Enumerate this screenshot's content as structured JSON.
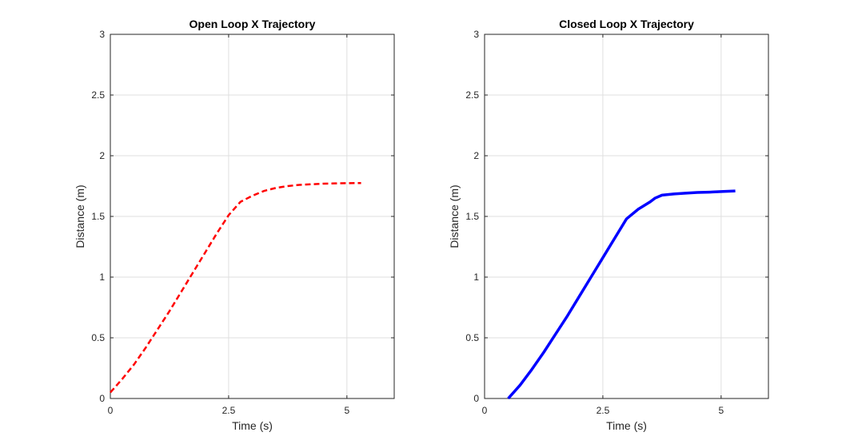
{
  "chart_data": [
    {
      "type": "line",
      "title": "Open Loop X Trajectory",
      "xlabel": "Time (s)",
      "ylabel": "Distance (m)",
      "xlim": [
        0,
        6
      ],
      "ylim": [
        0,
        3
      ],
      "xticks": [
        0,
        2.5,
        5
      ],
      "xtick_labels": [
        "0",
        "2.5",
        "5"
      ],
      "yticks": [
        0,
        0.5,
        1,
        1.5,
        2,
        2.5,
        3
      ],
      "ytick_labels": [
        "0",
        "0.5",
        "1",
        "1.5",
        "2",
        "2.5",
        "3"
      ],
      "grid": true,
      "series": [
        {
          "color": "#ff0000",
          "style": "dashed",
          "x": [
            0,
            0.25,
            0.5,
            0.75,
            1.0,
            1.25,
            1.5,
            1.75,
            2.0,
            2.25,
            2.5,
            2.75,
            3.0,
            3.25,
            3.5,
            3.75,
            4.0,
            4.25,
            4.5,
            4.75,
            5.0,
            5.3
          ],
          "y": [
            0.05,
            0.16,
            0.28,
            0.42,
            0.57,
            0.72,
            0.88,
            1.04,
            1.2,
            1.36,
            1.51,
            1.62,
            1.67,
            1.71,
            1.735,
            1.75,
            1.76,
            1.765,
            1.77,
            1.772,
            1.774,
            1.775
          ]
        }
      ]
    },
    {
      "type": "line",
      "title": "Closed Loop X Trajectory",
      "xlabel": "Time (s)",
      "ylabel": "Distance (m)",
      "xlim": [
        0,
        6
      ],
      "ylim": [
        0,
        3
      ],
      "xticks": [
        0,
        2.5,
        5
      ],
      "xtick_labels": [
        "0",
        "2.5",
        "5"
      ],
      "yticks": [
        0,
        0.5,
        1,
        1.5,
        2,
        2.5,
        3
      ],
      "ytick_labels": [
        "0",
        "0.5",
        "1",
        "1.5",
        "2",
        "2.5",
        "3"
      ],
      "grid": true,
      "series": [
        {
          "color": "#0000ff",
          "style": "solid",
          "x": [
            0.5,
            0.75,
            1.0,
            1.25,
            1.5,
            1.75,
            2.0,
            2.25,
            2.5,
            2.75,
            3.0,
            3.25,
            3.5,
            3.6,
            3.75,
            4.0,
            4.25,
            4.5,
            4.75,
            5.0,
            5.3
          ],
          "y": [
            0.0,
            0.11,
            0.24,
            0.38,
            0.53,
            0.68,
            0.84,
            1.0,
            1.16,
            1.32,
            1.48,
            1.56,
            1.62,
            1.65,
            1.675,
            1.685,
            1.692,
            1.697,
            1.7,
            1.705,
            1.71
          ]
        }
      ]
    }
  ]
}
